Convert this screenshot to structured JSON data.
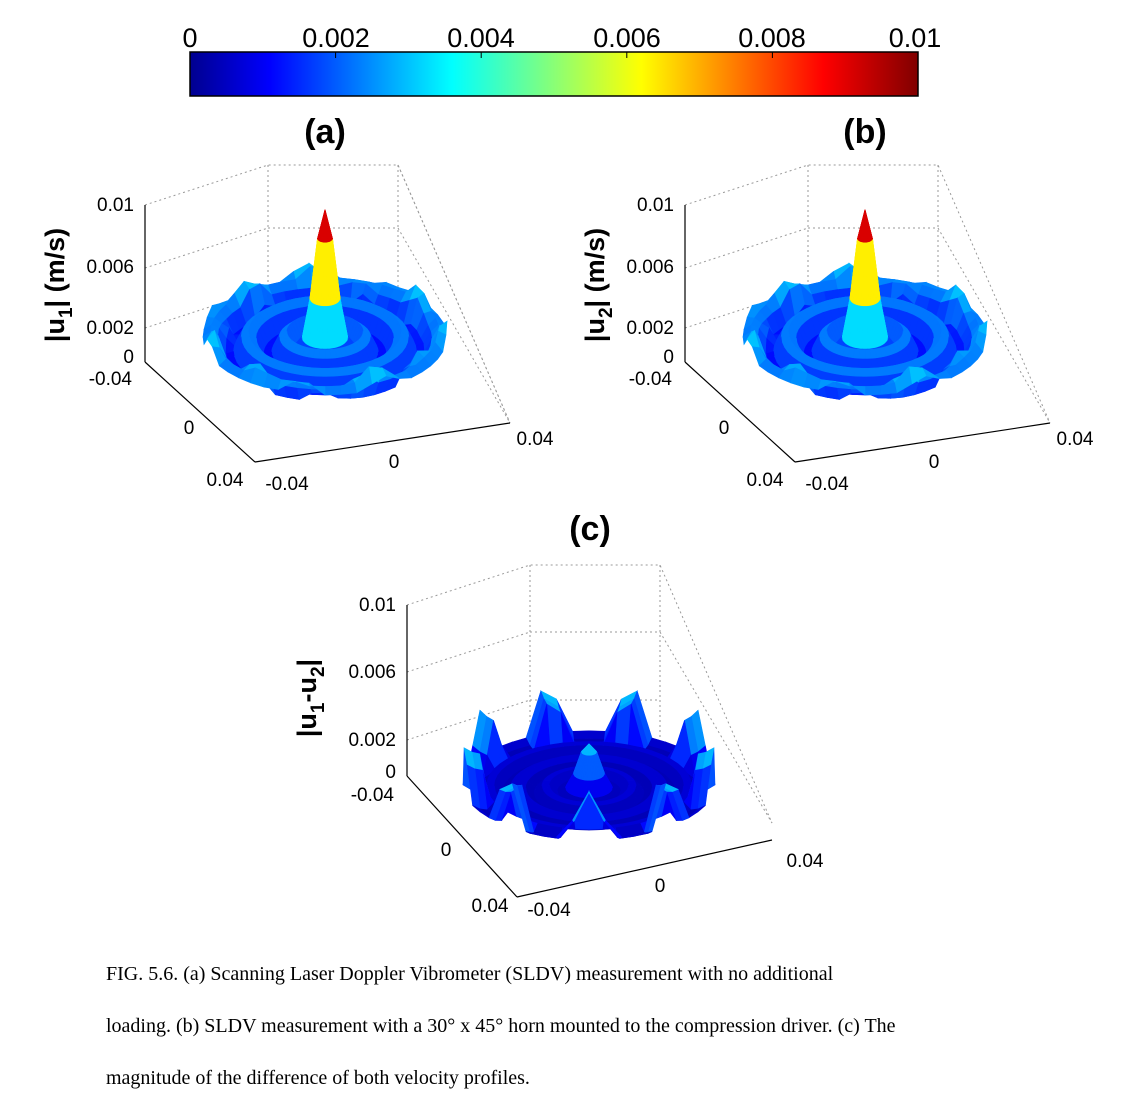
{
  "colorbar": {
    "ticks": [
      "0",
      "0.002",
      "0.004",
      "0.006",
      "0.008",
      "0.01"
    ],
    "range": [
      0,
      0.01
    ],
    "colormap": "jet"
  },
  "panels": [
    {
      "label": "(a)",
      "zlabel_main": "|u",
      "zlabel_sub": "1",
      "zlabel_tail": "| (m/s)",
      "z_ticks": [
        "0.01",
        "0.006",
        "0.002",
        "0"
      ],
      "y_ticks": [
        "-0.04",
        "0",
        "0.04"
      ],
      "x_ticks": [
        "-0.04",
        "0",
        "0.04"
      ],
      "peak_value": 0.0085
    },
    {
      "label": "(b)",
      "zlabel_main": "|u",
      "zlabel_sub": "2",
      "zlabel_tail": "| (m/s)",
      "z_ticks": [
        "0.01",
        "0.006",
        "0.002",
        "0"
      ],
      "y_ticks": [
        "-0.04",
        "0",
        "0.04"
      ],
      "x_ticks": [
        "-0.04",
        "0",
        "0.04"
      ],
      "peak_value": 0.0085
    },
    {
      "label": "(c)",
      "zlabel_main": "|u",
      "zlabel_sub": "1",
      "zlabel_tail": "-u",
      "zlabel_sub2": "2",
      "zlabel_end": "|",
      "z_ticks": [
        "0.01",
        "0.006",
        "0.002",
        "0"
      ],
      "y_ticks": [
        "-0.04",
        "0",
        "0.04"
      ],
      "x_ticks": [
        "-0.04",
        "0",
        "0.04"
      ],
      "peak_value": 0.003
    }
  ],
  "caption": {
    "line1": "FIG. 5.6. (a) Scanning Laser Doppler Vibrometer (SLDV) measurement with no additional",
    "line2": "loading. (b) SLDV measurement with a 30° x 45° horn mounted to the compression driver. (c) The",
    "line3": "magnitude of the difference of both velocity profiles."
  }
}
